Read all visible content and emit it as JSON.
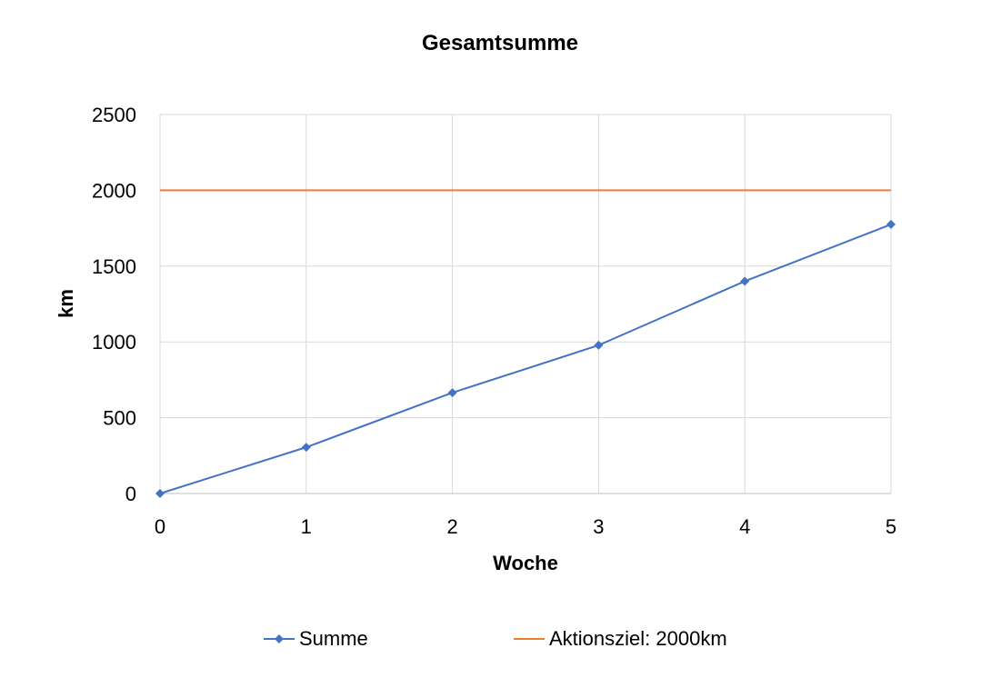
{
  "chart_data": {
    "type": "line",
    "title": "Gesamtsumme",
    "xlabel": "Woche",
    "ylabel": "km",
    "x": [
      0,
      1,
      2,
      3,
      4,
      5
    ],
    "xlim": [
      0,
      5
    ],
    "ylim": [
      0,
      2500
    ],
    "x_ticks": [
      "0",
      "1",
      "2",
      "3",
      "4",
      "5"
    ],
    "y_ticks": [
      "0",
      "500",
      "1000",
      "1500",
      "2000",
      "2500"
    ],
    "grid": true,
    "legend_position": "bottom",
    "series": [
      {
        "name": "Summe",
        "values": [
          0,
          305,
          665,
          978,
          1400,
          1775
        ],
        "color": "#4472C4",
        "marker": "diamond"
      },
      {
        "name": "Aktionsziel: 2000km",
        "values": [
          2000,
          2000,
          2000,
          2000,
          2000,
          2000
        ],
        "color": "#ED7D31",
        "marker": "none"
      }
    ]
  }
}
